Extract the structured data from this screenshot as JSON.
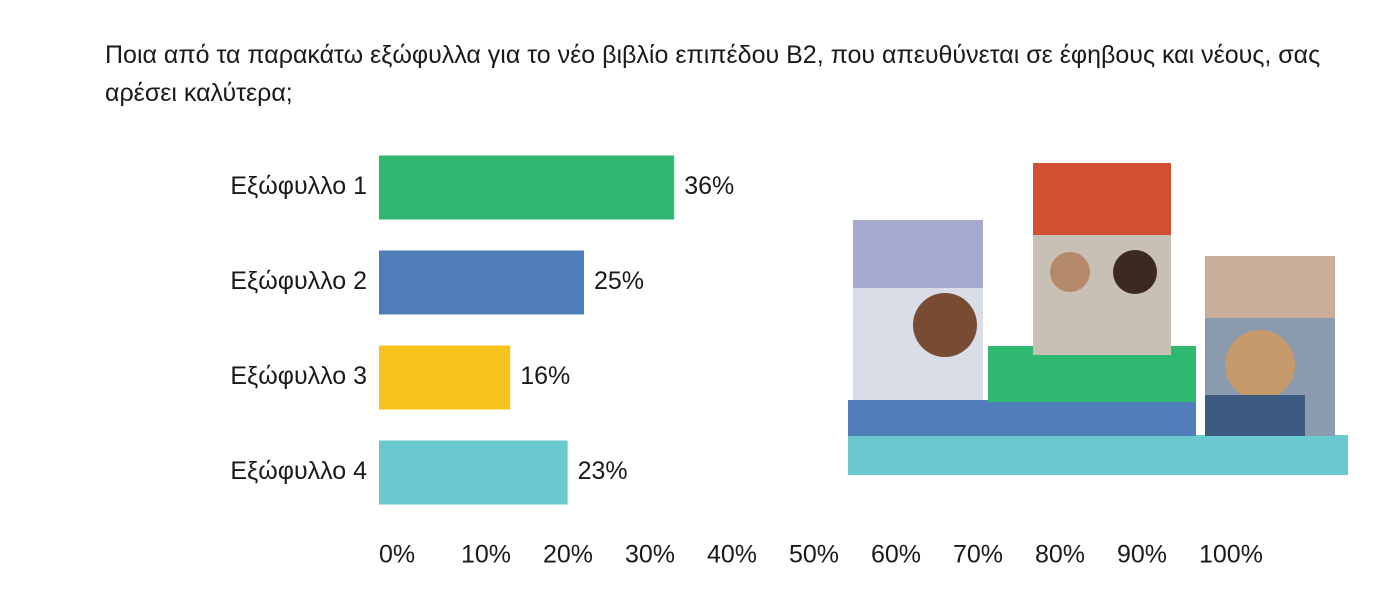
{
  "chart_data": {
    "type": "bar",
    "orientation": "horizontal",
    "title": "Ποια από τα παρακάτω εξώφυλλα για το νέο βιβλίο επιπέδου Β2, που απευθύνεται σε έφηβους και νέους, σας αρέσει καλύτερα;",
    "categories": [
      "Εξώφυλλο 1",
      "Εξώφυλλο 2",
      "Εξώφυλλο 3",
      "Εξώφυλλο 4"
    ],
    "values": [
      36,
      25,
      16,
      23
    ],
    "value_labels": [
      "36%",
      "25%",
      "16%",
      "23%"
    ],
    "colors": [
      "#2fb870",
      "#4f7dba",
      "#f7c21b",
      "#69c9ce"
    ],
    "xlim": [
      0,
      100
    ],
    "xticks": [
      {
        "value": 0,
        "label": "0%"
      },
      {
        "value": 10,
        "label": "10%"
      },
      {
        "value": 20,
        "label": "20%"
      },
      {
        "value": 30,
        "label": "30%"
      },
      {
        "value": 40,
        "label": "40%"
      },
      {
        "value": 50,
        "label": "50%"
      },
      {
        "value": 60,
        "label": "60%"
      },
      {
        "value": 70,
        "label": "70%"
      },
      {
        "value": 80,
        "label": "80%"
      },
      {
        "value": 90,
        "label": "90%"
      },
      {
        "value": 100,
        "label": "100%"
      }
    ],
    "grid": false
  }
}
